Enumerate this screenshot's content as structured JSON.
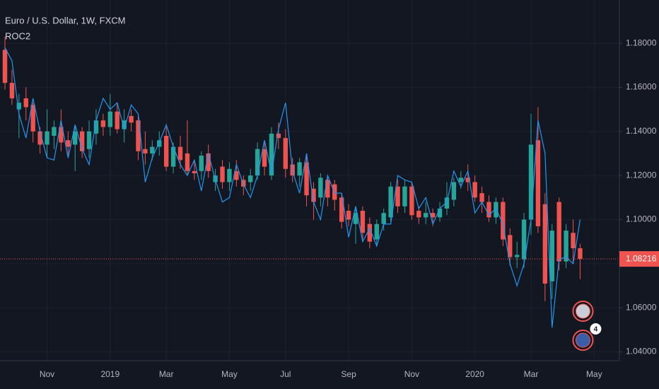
{
  "chart_data": {
    "type": "candlestick",
    "title": "Euro / U.S. Dollar, 1W, FXCM",
    "categories": [
      null,
      null,
      null,
      null,
      null,
      null,
      "Nov",
      null,
      null,
      null,
      null,
      null,
      null,
      null,
      null,
      "2019",
      null,
      null,
      null,
      null,
      null,
      null,
      null,
      "Mar",
      null,
      null,
      null,
      null,
      null,
      null,
      null,
      null,
      "May",
      null,
      null,
      null,
      null,
      null,
      null,
      null,
      "Jul",
      null,
      null,
      null,
      null,
      null,
      null,
      null,
      null,
      "Sep",
      null,
      null,
      null,
      null,
      null,
      null,
      null,
      null,
      "Nov",
      null,
      null,
      null,
      null,
      null,
      null,
      null,
      null,
      "2020",
      null,
      null,
      null,
      null,
      null,
      null,
      null,
      "Mar",
      null,
      null,
      null,
      null,
      null,
      null,
      null,
      null,
      "May"
    ],
    "open": [
      1.177,
      1.162,
      1.15,
      1.155,
      1.152,
      1.14,
      1.134,
      1.138,
      1.142,
      1.136,
      1.134,
      1.14,
      1.132,
      1.139,
      1.145,
      1.142,
      1.149,
      1.141,
      1.147,
      1.145,
      1.132,
      1.13,
      1.133,
      1.138,
      1.124,
      1.133,
      1.13,
      1.122,
      1.122,
      1.13,
      1.117,
      1.124,
      1.117,
      1.122,
      1.118,
      1.117,
      1.12,
      1.132,
      1.12,
      1.139,
      1.137,
      1.125,
      1.12,
      1.126,
      1.114,
      1.11,
      1.118,
      1.116,
      1.11,
      1.104,
      1.098,
      1.104,
      1.098,
      1.091,
      1.098,
      1.101,
      1.115,
      1.106,
      1.115,
      1.104,
      1.101,
      1.103,
      1.101,
      1.105,
      1.109,
      1.117,
      1.119,
      1.117,
      1.112,
      1.108,
      1.101,
      1.108,
      1.093,
      1.083,
      1.082,
      1.1,
      1.136,
      1.107,
      1.072,
      1.108,
      1.081,
      1.094,
      1.087,
      null,
      null
    ],
    "high": [
      1.183,
      1.168,
      1.157,
      1.16,
      1.153,
      1.142,
      1.15,
      1.145,
      1.15,
      1.14,
      1.143,
      1.142,
      1.145,
      1.15,
      1.148,
      1.157,
      1.153,
      1.15,
      1.15,
      1.147,
      1.14,
      1.136,
      1.14,
      1.142,
      1.135,
      1.138,
      1.145,
      1.127,
      1.131,
      1.134,
      1.123,
      1.127,
      1.126,
      1.127,
      1.12,
      1.123,
      1.135,
      1.135,
      1.142,
      1.144,
      1.141,
      1.128,
      1.128,
      1.129,
      1.117,
      1.121,
      1.12,
      1.118,
      1.112,
      1.107,
      1.106,
      1.106,
      1.101,
      1.1,
      1.105,
      1.117,
      1.118,
      1.118,
      1.117,
      1.106,
      1.108,
      1.105,
      1.108,
      1.117,
      1.119,
      1.122,
      1.125,
      1.12,
      1.115,
      1.111,
      1.11,
      1.11,
      1.096,
      1.09,
      1.103,
      1.148,
      1.151,
      1.112,
      1.098,
      1.11,
      1.098,
      1.1,
      1.089,
      null,
      null
    ],
    "low": [
      1.159,
      1.152,
      1.137,
      1.145,
      1.135,
      1.13,
      1.128,
      1.132,
      1.131,
      1.128,
      1.122,
      1.128,
      1.128,
      1.134,
      1.138,
      1.138,
      1.139,
      1.135,
      1.14,
      1.127,
      1.125,
      1.127,
      1.129,
      1.122,
      1.121,
      1.123,
      1.12,
      1.118,
      1.118,
      1.119,
      1.113,
      1.114,
      1.113,
      1.115,
      1.111,
      1.113,
      1.118,
      1.12,
      1.118,
      1.132,
      1.119,
      1.117,
      1.115,
      1.106,
      1.1,
      1.106,
      1.106,
      1.104,
      1.096,
      1.097,
      1.089,
      1.091,
      1.087,
      1.088,
      1.095,
      1.099,
      1.103,
      1.103,
      1.1,
      1.098,
      1.098,
      1.097,
      1.099,
      1.102,
      1.106,
      1.114,
      1.113,
      1.108,
      1.103,
      1.099,
      1.098,
      1.088,
      1.079,
      1.078,
      1.078,
      1.093,
      1.094,
      1.063,
      1.064,
      1.077,
      1.078,
      1.08,
      1.073,
      null,
      null
    ],
    "close": [
      1.162,
      1.155,
      1.153,
      1.151,
      1.14,
      1.134,
      1.14,
      1.142,
      1.135,
      1.133,
      1.14,
      1.131,
      1.14,
      1.145,
      1.142,
      1.149,
      1.141,
      1.145,
      1.144,
      1.131,
      1.13,
      1.133,
      1.136,
      1.124,
      1.133,
      1.127,
      1.122,
      1.121,
      1.129,
      1.122,
      1.12,
      1.117,
      1.123,
      1.118,
      1.115,
      1.12,
      1.132,
      1.124,
      1.139,
      1.137,
      1.123,
      1.12,
      1.126,
      1.111,
      1.108,
      1.119,
      1.11,
      1.109,
      1.099,
      1.1,
      1.103,
      1.094,
      1.09,
      1.098,
      1.103,
      1.115,
      1.106,
      1.115,
      1.102,
      1.101,
      1.103,
      1.101,
      1.105,
      1.11,
      1.117,
      1.119,
      1.117,
      1.11,
      1.108,
      1.101,
      1.108,
      1.091,
      1.083,
      1.084,
      1.1,
      1.134,
      1.097,
      1.071,
      1.095,
      1.081,
      1.095,
      1.087,
      1.08216,
      null,
      null
    ],
    "up_color": "#26a69a",
    "down_color": "#ef5350",
    "series": [
      {
        "name": "ROC2",
        "color": "#2196f3",
        "values": [
          1.178,
          1.172,
          1.148,
          1.137,
          1.155,
          1.14,
          1.128,
          1.127,
          1.145,
          1.128,
          1.143,
          1.132,
          1.125,
          1.145,
          1.155,
          1.15,
          1.153,
          1.141,
          1.152,
          1.148,
          1.117,
          1.128,
          1.135,
          1.143,
          1.133,
          1.125,
          1.12,
          1.127,
          1.113,
          1.13,
          1.118,
          1.108,
          1.11,
          1.125,
          1.116,
          1.11,
          1.12,
          1.136,
          1.121,
          1.141,
          1.153,
          1.122,
          1.112,
          1.13,
          1.108,
          1.1,
          1.12,
          1.112,
          1.112,
          1.092,
          1.106,
          1.09,
          1.096,
          1.088,
          1.098,
          1.098,
          1.12,
          1.118,
          1.117,
          1.105,
          1.11,
          1.098,
          1.105,
          1.108,
          1.122,
          1.115,
          1.122,
          1.103,
          1.108,
          1.102,
          1.105,
          1.098,
          1.08,
          1.07,
          1.08,
          1.1,
          1.145,
          1.13,
          1.051,
          1.082,
          1.083,
          1.08,
          1.1,
          null,
          null
        ]
      }
    ],
    "ylim": [
      1.036,
      1.1996
    ],
    "yticks": [
      {
        "value": 1.04,
        "label": "1.04000"
      },
      {
        "value": 1.06,
        "label": "1.06000"
      },
      {
        "value": 1.08,
        "label": "1.08000"
      },
      {
        "value": 1.1,
        "label": "1.10000"
      },
      {
        "value": 1.12,
        "label": "1.12000"
      },
      {
        "value": 1.14,
        "label": "1.14000"
      },
      {
        "value": 1.16,
        "label": "1.16000"
      },
      {
        "value": 1.18,
        "label": "1.18000"
      }
    ],
    "grid": true,
    "events_count": 4
  }
}
